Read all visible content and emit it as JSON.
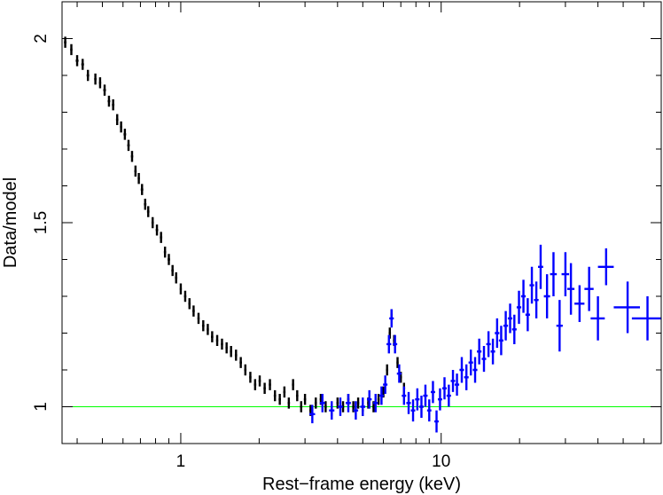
{
  "chart_data": {
    "type": "scatter",
    "title": "",
    "xlabel": "Rest−frame energy (keV)",
    "ylabel": "Data/model",
    "xscale": "log",
    "xlim": [
      0.35,
      70
    ],
    "ylim": [
      0.9,
      2.1
    ],
    "x_ticks": [
      {
        "value": 1,
        "label": "1"
      },
      {
        "value": 10,
        "label": "10"
      }
    ],
    "y_ticks": [
      {
        "value": 1,
        "label": "1"
      },
      {
        "value": 1.5,
        "label": "1.5"
      },
      {
        "value": 2,
        "label": "2"
      }
    ],
    "grid": false,
    "reference_line": {
      "y": 1.0,
      "color": "#00ff00"
    },
    "series": [
      {
        "color": "#000000",
        "points": [
          [
            0.36,
            1.99,
            0.004,
            0.015
          ],
          [
            0.38,
            1.97,
            0.004,
            0.015
          ],
          [
            0.4,
            1.94,
            0.005,
            0.015
          ],
          [
            0.42,
            1.93,
            0.005,
            0.015
          ],
          [
            0.44,
            1.9,
            0.005,
            0.015
          ],
          [
            0.47,
            1.89,
            0.005,
            0.015
          ],
          [
            0.49,
            1.88,
            0.005,
            0.015
          ],
          [
            0.51,
            1.86,
            0.006,
            0.015
          ],
          [
            0.53,
            1.83,
            0.006,
            0.015
          ],
          [
            0.55,
            1.82,
            0.006,
            0.015
          ],
          [
            0.57,
            1.78,
            0.006,
            0.015
          ],
          [
            0.59,
            1.76,
            0.006,
            0.015
          ],
          [
            0.61,
            1.74,
            0.007,
            0.015
          ],
          [
            0.63,
            1.71,
            0.007,
            0.015
          ],
          [
            0.65,
            1.68,
            0.007,
            0.015
          ],
          [
            0.67,
            1.64,
            0.007,
            0.015
          ],
          [
            0.69,
            1.62,
            0.007,
            0.015
          ],
          [
            0.71,
            1.59,
            0.008,
            0.015
          ],
          [
            0.73,
            1.55,
            0.008,
            0.015
          ],
          [
            0.75,
            1.53,
            0.008,
            0.015
          ],
          [
            0.78,
            1.5,
            0.008,
            0.015
          ],
          [
            0.81,
            1.48,
            0.009,
            0.015
          ],
          [
            0.84,
            1.46,
            0.009,
            0.015
          ],
          [
            0.87,
            1.42,
            0.009,
            0.015
          ],
          [
            0.9,
            1.4,
            0.01,
            0.015
          ],
          [
            0.93,
            1.37,
            0.01,
            0.015
          ],
          [
            0.96,
            1.35,
            0.01,
            0.015
          ],
          [
            1.0,
            1.32,
            0.01,
            0.015
          ],
          [
            1.04,
            1.3,
            0.011,
            0.015
          ],
          [
            1.08,
            1.28,
            0.011,
            0.015
          ],
          [
            1.12,
            1.26,
            0.012,
            0.015
          ],
          [
            1.17,
            1.24,
            0.012,
            0.015
          ],
          [
            1.22,
            1.22,
            0.013,
            0.015
          ],
          [
            1.27,
            1.21,
            0.013,
            0.015
          ],
          [
            1.32,
            1.19,
            0.014,
            0.015
          ],
          [
            1.38,
            1.18,
            0.014,
            0.015
          ],
          [
            1.44,
            1.17,
            0.015,
            0.015
          ],
          [
            1.5,
            1.16,
            0.015,
            0.015
          ],
          [
            1.56,
            1.15,
            0.016,
            0.015
          ],
          [
            1.63,
            1.14,
            0.017,
            0.015
          ],
          [
            1.7,
            1.12,
            0.018,
            0.015
          ],
          [
            1.77,
            1.1,
            0.018,
            0.015
          ],
          [
            1.85,
            1.08,
            0.019,
            0.015
          ],
          [
            1.93,
            1.06,
            0.02,
            0.015
          ],
          [
            2.01,
            1.07,
            0.021,
            0.015
          ],
          [
            2.1,
            1.05,
            0.022,
            0.015
          ],
          [
            2.2,
            1.06,
            0.023,
            0.015
          ],
          [
            2.3,
            1.03,
            0.024,
            0.015
          ],
          [
            2.4,
            1.02,
            0.025,
            0.015
          ],
          [
            2.5,
            1.04,
            0.026,
            0.015
          ],
          [
            2.6,
            1.01,
            0.027,
            0.015
          ],
          [
            2.7,
            1.06,
            0.028,
            0.015
          ],
          [
            2.8,
            1.03,
            0.029,
            0.015
          ],
          [
            2.9,
            1.0,
            0.03,
            0.015
          ],
          [
            3.0,
            1.02,
            0.031,
            0.015
          ],
          [
            3.15,
            0.99,
            0.032,
            0.015
          ],
          [
            3.3,
            1.01,
            0.034,
            0.015
          ],
          [
            3.45,
            1.02,
            0.035,
            0.015
          ],
          [
            3.6,
            1.0,
            0.037,
            0.015
          ],
          [
            3.8,
            0.99,
            0.039,
            0.015
          ],
          [
            4.0,
            1.01,
            0.041,
            0.015
          ],
          [
            4.2,
            1.0,
            0.043,
            0.015
          ],
          [
            4.4,
            1.02,
            0.045,
            0.015
          ],
          [
            4.6,
            1.0,
            0.047,
            0.015
          ],
          [
            4.8,
            1.01,
            0.049,
            0.015
          ],
          [
            5.0,
            0.99,
            0.051,
            0.015
          ],
          [
            5.25,
            1.01,
            0.054,
            0.015
          ],
          [
            5.5,
            1.0,
            0.056,
            0.015
          ],
          [
            5.75,
            1.02,
            0.059,
            0.015
          ],
          [
            6.0,
            1.04,
            0.061,
            0.015
          ],
          [
            6.2,
            1.1,
            0.063,
            0.015
          ],
          [
            6.35,
            1.2,
            0.064,
            0.015
          ],
          [
            6.45,
            1.25,
            0.065,
            0.015
          ],
          [
            6.6,
            1.18,
            0.067,
            0.015
          ],
          [
            6.8,
            1.12,
            0.069,
            0.015
          ],
          [
            7.0,
            1.08,
            0.071,
            0.015
          ],
          [
            7.2,
            1.05,
            0.073,
            0.015
          ]
        ]
      },
      {
        "color": "#0000ff",
        "points": [
          [
            3.2,
            0.98,
            0.08,
            0.025
          ],
          [
            3.5,
            1.01,
            0.08,
            0.025
          ],
          [
            3.8,
            0.99,
            0.09,
            0.025
          ],
          [
            4.1,
            1.0,
            0.09,
            0.025
          ],
          [
            4.4,
            1.01,
            0.1,
            0.025
          ],
          [
            4.7,
            0.99,
            0.1,
            0.025
          ],
          [
            5.0,
            1.0,
            0.11,
            0.025
          ],
          [
            5.3,
            1.02,
            0.11,
            0.025
          ],
          [
            5.6,
            1.01,
            0.12,
            0.025
          ],
          [
            5.9,
            1.03,
            0.12,
            0.025
          ],
          [
            6.1,
            1.06,
            0.12,
            0.025
          ],
          [
            6.3,
            1.17,
            0.13,
            0.025
          ],
          [
            6.45,
            1.24,
            0.13,
            0.025
          ],
          [
            6.65,
            1.17,
            0.13,
            0.025
          ],
          [
            6.9,
            1.09,
            0.14,
            0.025
          ],
          [
            7.2,
            1.03,
            0.14,
            0.025
          ],
          [
            7.5,
            1.01,
            0.15,
            0.03
          ],
          [
            7.8,
            0.99,
            0.15,
            0.03
          ],
          [
            8.1,
            1.02,
            0.16,
            0.03
          ],
          [
            8.4,
            1.0,
            0.16,
            0.03
          ],
          [
            8.7,
            1.03,
            0.17,
            0.03
          ],
          [
            9.0,
            0.99,
            0.17,
            0.03
          ],
          [
            9.3,
            1.04,
            0.18,
            0.03
          ],
          [
            9.6,
            0.96,
            0.18,
            0.03
          ],
          [
            9.9,
            1.02,
            0.19,
            0.03
          ],
          [
            10.3,
            1.05,
            0.2,
            0.03
          ],
          [
            10.7,
            1.03,
            0.21,
            0.03
          ],
          [
            11.1,
            1.07,
            0.22,
            0.03
          ],
          [
            11.5,
            1.06,
            0.23,
            0.03
          ],
          [
            12.0,
            1.1,
            0.24,
            0.035
          ],
          [
            12.5,
            1.08,
            0.25,
            0.035
          ],
          [
            13.0,
            1.12,
            0.26,
            0.035
          ],
          [
            13.5,
            1.1,
            0.27,
            0.035
          ],
          [
            14.0,
            1.15,
            0.28,
            0.035
          ],
          [
            14.6,
            1.13,
            0.29,
            0.035
          ],
          [
            15.2,
            1.17,
            0.3,
            0.035
          ],
          [
            15.8,
            1.15,
            0.31,
            0.035
          ],
          [
            16.4,
            1.2,
            0.33,
            0.04
          ],
          [
            17.0,
            1.18,
            0.34,
            0.04
          ],
          [
            17.7,
            1.22,
            0.36,
            0.04
          ],
          [
            18.4,
            1.24,
            0.37,
            0.04
          ],
          [
            19.1,
            1.21,
            0.39,
            0.04
          ],
          [
            19.9,
            1.27,
            0.4,
            0.045
          ],
          [
            20.7,
            1.3,
            0.42,
            0.045
          ],
          [
            21.5,
            1.25,
            0.43,
            0.045
          ],
          [
            22.3,
            1.33,
            0.45,
            0.05
          ],
          [
            23.2,
            1.29,
            0.47,
            0.05
          ],
          [
            24.1,
            1.38,
            0.55,
            0.06
          ],
          [
            25.5,
            1.3,
            0.7,
            0.06
          ],
          [
            27.0,
            1.36,
            0.8,
            0.06
          ],
          [
            28.5,
            1.22,
            0.8,
            0.07
          ],
          [
            30.0,
            1.36,
            1.0,
            0.06
          ],
          [
            31.5,
            1.32,
            1.0,
            0.07
          ],
          [
            34.0,
            1.28,
            1.5,
            0.05
          ],
          [
            37.0,
            1.32,
            1.5,
            0.06
          ],
          [
            40.0,
            1.24,
            2.5,
            0.06
          ],
          [
            43.0,
            1.38,
            3.0,
            0.05
          ],
          [
            52.0,
            1.27,
            6.0,
            0.07
          ],
          [
            62.0,
            1.24,
            8.0,
            0.06
          ]
        ]
      }
    ]
  }
}
